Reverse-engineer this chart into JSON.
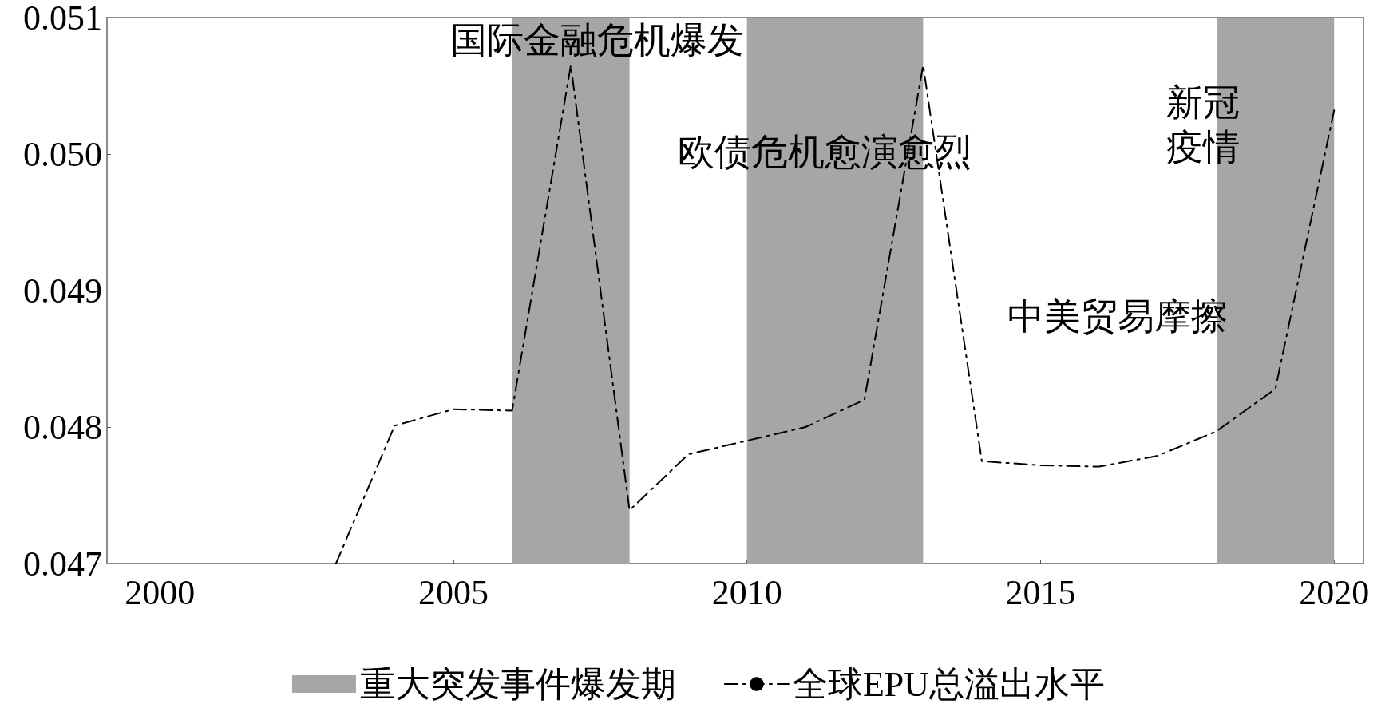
{
  "chart_data": {
    "type": "line",
    "x": [
      2003,
      2004,
      2005,
      2006,
      2007,
      2008,
      2009,
      2010,
      2011,
      2012,
      2013,
      2014,
      2015,
      2016,
      2017,
      2018,
      2019,
      2020
    ],
    "series": [
      {
        "name": "全球EPU总溢出水平",
        "color": "#000000",
        "values": [
          0.047,
          0.04801,
          0.04813,
          0.04812,
          0.05065,
          0.04739,
          0.0478,
          0.0479,
          0.048,
          0.0482,
          0.05065,
          0.04775,
          0.04772,
          0.04771,
          0.04779,
          0.04797,
          0.04828,
          0.05032
        ]
      }
    ],
    "xlim": [
      1999.1,
      2020.5
    ],
    "xticks": [
      2000,
      2005,
      2010,
      2015,
      2020
    ],
    "ylim": [
      0.047,
      0.051
    ],
    "yticks": [
      {
        "value": 0.047,
        "label": "0.047"
      },
      {
        "value": 0.048,
        "label": "0.048"
      },
      {
        "value": 0.049,
        "label": "0.049"
      },
      {
        "value": 0.05,
        "label": "0.050"
      },
      {
        "value": 0.051,
        "label": "0.051"
      }
    ],
    "bands": [
      {
        "axis": "x",
        "from": 2006,
        "to": 2008,
        "color": "#a6a6a6",
        "label": "重大突发事件爆发期"
      },
      {
        "axis": "x",
        "from": 2010,
        "to": 2013,
        "color": "#a6a6a6"
      },
      {
        "axis": "x",
        "from": 2018,
        "to": 2020,
        "color": "#a6a6a6"
      }
    ],
    "annotations": [
      "国际金融危机爆发",
      "欧债危机愈演愈烈",
      "中美贸易摩擦",
      "新冠疫情"
    ],
    "grid": false,
    "legend": "bottom",
    "marker": "none",
    "line_style": "dashed"
  }
}
